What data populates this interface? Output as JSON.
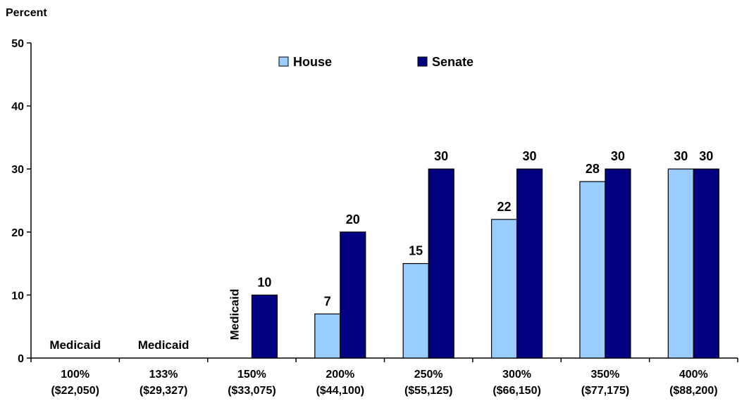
{
  "chart_data": {
    "type": "bar",
    "ylabel": "Percent",
    "ylim": [
      0,
      50
    ],
    "yticks": [
      0,
      10,
      20,
      30,
      40,
      50
    ],
    "grid": false,
    "legend_position": "top-center",
    "categories": [
      [
        "100%",
        "($22,050)"
      ],
      [
        "133%",
        "($29,327)"
      ],
      [
        "150%",
        "($33,075)"
      ],
      [
        "200%",
        "($44,100)"
      ],
      [
        "250%",
        "($55,125)"
      ],
      [
        "300%",
        "($66,150)"
      ],
      [
        "350%",
        "($77,175)"
      ],
      [
        "400%",
        "($88,200)"
      ]
    ],
    "series": [
      {
        "name": "House",
        "color": "#99ccff",
        "values": [
          null,
          null,
          null,
          7,
          15,
          22,
          28,
          30
        ]
      },
      {
        "name": "Senate",
        "color": "#000080",
        "values": [
          null,
          null,
          10,
          20,
          30,
          30,
          30,
          30
        ]
      }
    ],
    "annotations": [
      {
        "category_index": 0,
        "text": "Medicaid",
        "orientation": "horizontal"
      },
      {
        "category_index": 1,
        "text": "Medicaid",
        "orientation": "horizontal"
      },
      {
        "category_index": 2,
        "text": "Medicaid",
        "orientation": "vertical"
      }
    ]
  }
}
